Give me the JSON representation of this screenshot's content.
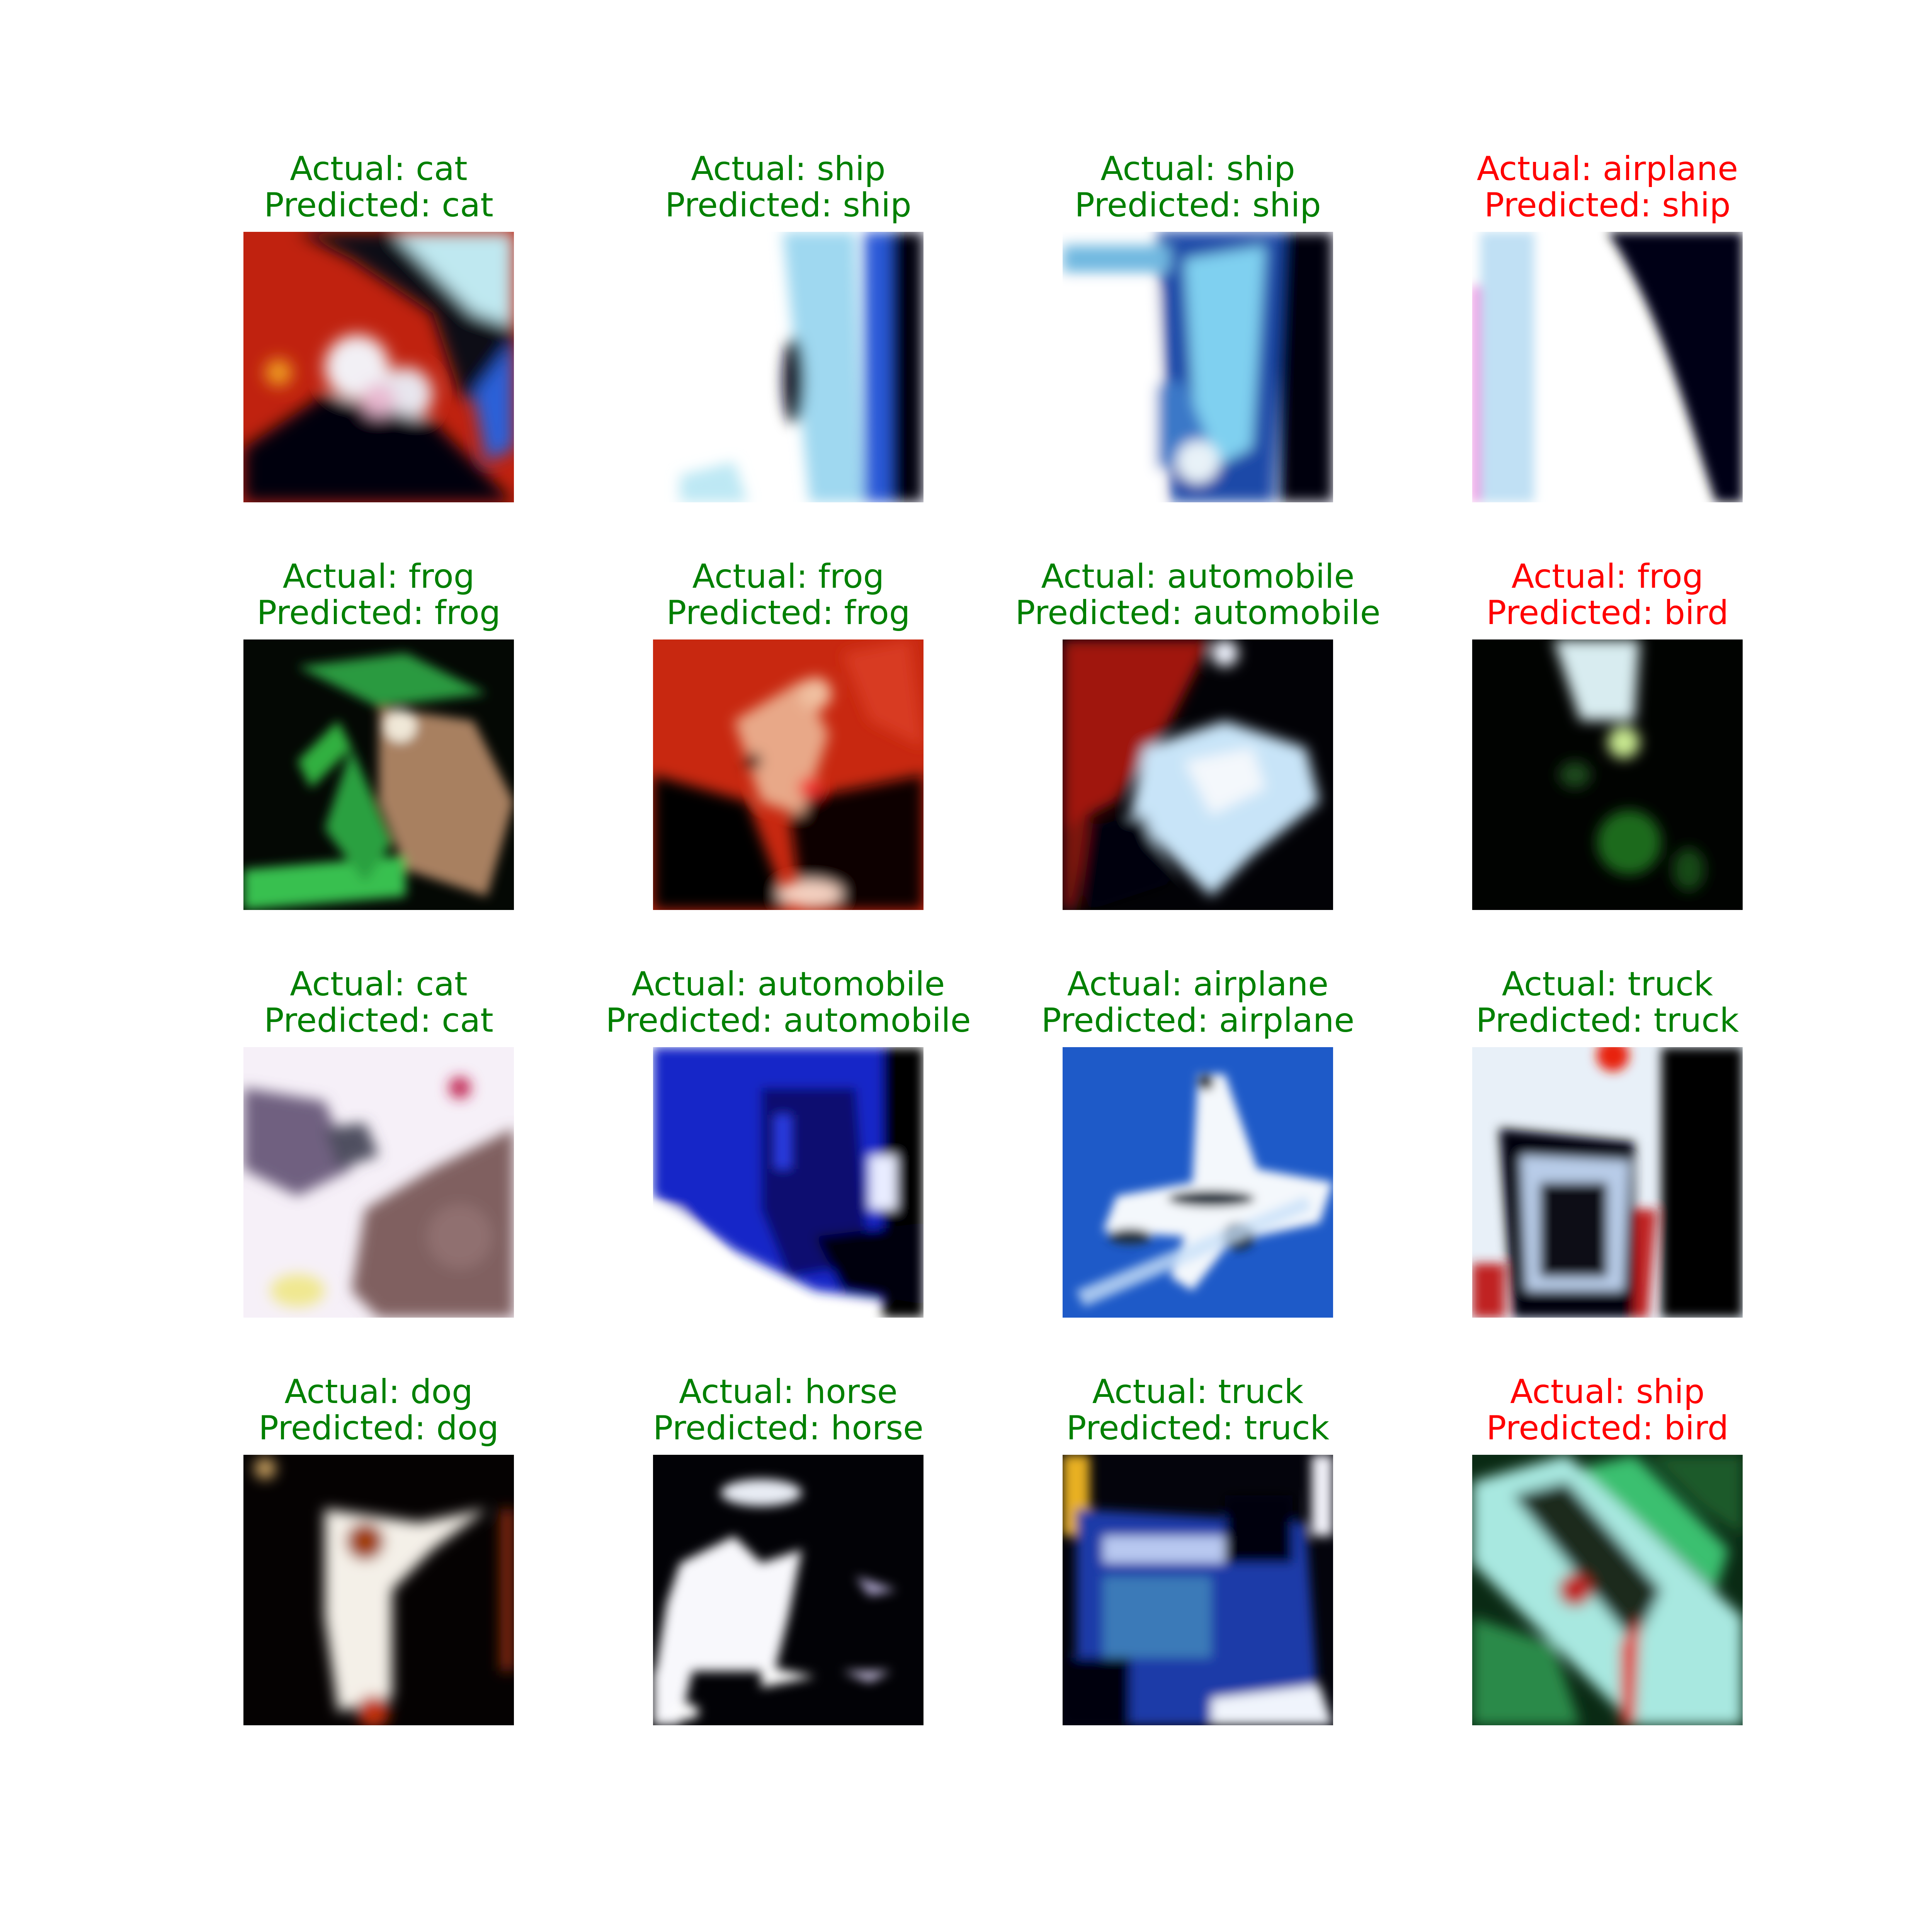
{
  "colors": {
    "correct": "#008000",
    "incorrect": "#ff0000",
    "background": "#ffffff"
  },
  "panels": [
    {
      "actual": "Actual: cat",
      "predicted": "Predicted: cat",
      "correct": true,
      "image": "cat-photo"
    },
    {
      "actual": "Actual: ship",
      "predicted": "Predicted: ship",
      "correct": true,
      "image": "ship-photo"
    },
    {
      "actual": "Actual: ship",
      "predicted": "Predicted: ship",
      "correct": true,
      "image": "ship-photo"
    },
    {
      "actual": "Actual: airplane",
      "predicted": "Predicted: ship",
      "correct": false,
      "image": "airplane-photo"
    },
    {
      "actual": "Actual: frog",
      "predicted": "Predicted: frog",
      "correct": true,
      "image": "frog-photo"
    },
    {
      "actual": "Actual: frog",
      "predicted": "Predicted: frog",
      "correct": true,
      "image": "frog-photo"
    },
    {
      "actual": "Actual: automobile",
      "predicted": "Predicted: automobile",
      "correct": true,
      "image": "automobile-photo"
    },
    {
      "actual": "Actual: frog",
      "predicted": "Predicted: bird",
      "correct": false,
      "image": "frog-photo"
    },
    {
      "actual": "Actual: cat",
      "predicted": "Predicted: cat",
      "correct": true,
      "image": "cat-photo"
    },
    {
      "actual": "Actual: automobile",
      "predicted": "Predicted: automobile",
      "correct": true,
      "image": "automobile-photo"
    },
    {
      "actual": "Actual: airplane",
      "predicted": "Predicted: airplane",
      "correct": true,
      "image": "airplane-photo"
    },
    {
      "actual": "Actual: truck",
      "predicted": "Predicted: truck",
      "correct": true,
      "image": "truck-photo"
    },
    {
      "actual": "Actual: dog",
      "predicted": "Predicted: dog",
      "correct": true,
      "image": "dog-photo"
    },
    {
      "actual": "Actual: horse",
      "predicted": "Predicted: horse",
      "correct": true,
      "image": "horse-photo"
    },
    {
      "actual": "Actual: truck",
      "predicted": "Predicted: truck",
      "correct": true,
      "image": "truck-photo"
    },
    {
      "actual": "Actual: ship",
      "predicted": "Predicted: bird",
      "correct": false,
      "image": "ship-photo"
    }
  ]
}
